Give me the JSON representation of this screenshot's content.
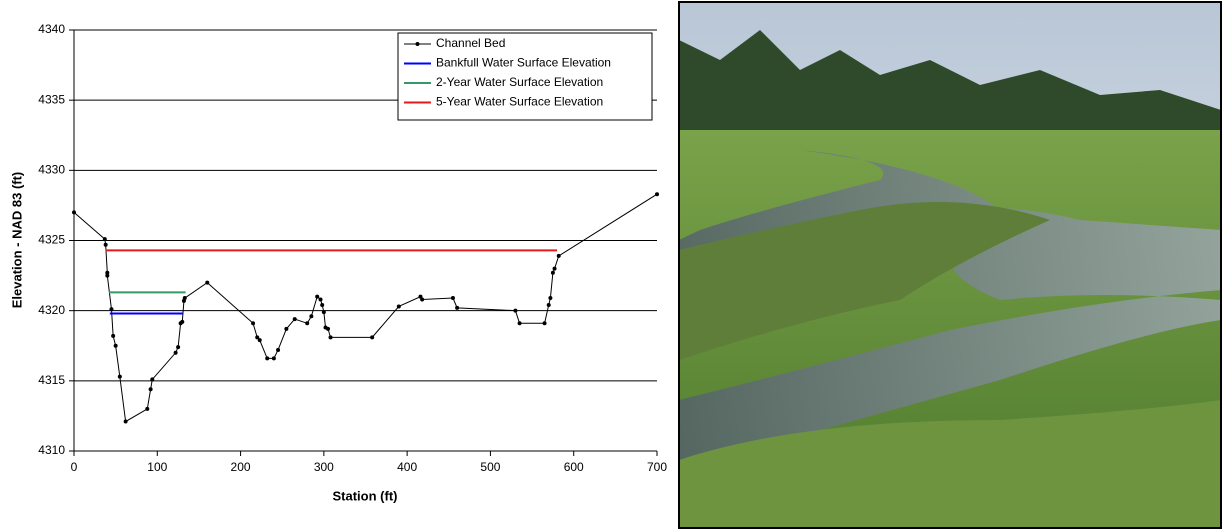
{
  "chart_data": {
    "type": "line",
    "x_label": "Station (ft)",
    "y_label": "Elevation - NAD 83 (ft)",
    "xlim": [
      0,
      700
    ],
    "xticks": [
      0,
      100,
      200,
      300,
      400,
      500,
      600,
      700
    ],
    "ylim": [
      4310,
      4340
    ],
    "yticks": [
      4310,
      4315,
      4320,
      4325,
      4330,
      4335,
      4340
    ],
    "grid": true,
    "legend": "upper right",
    "series": [
      {
        "name": "Channel Bed",
        "color": "#000000",
        "markers": true,
        "x": [
          0,
          37,
          38,
          40,
          40,
          45,
          47,
          50,
          55,
          62,
          88,
          92,
          94,
          122,
          125,
          128,
          130,
          132,
          133,
          160,
          215,
          220,
          223,
          232,
          240,
          245,
          255,
          265,
          280,
          285,
          292,
          296,
          298,
          300,
          302,
          305,
          308,
          358,
          390,
          416,
          418,
          455,
          460,
          530,
          535,
          565,
          570,
          572,
          575,
          577,
          582,
          700
        ],
        "values": [
          4327,
          4325.1,
          4324.7,
          4322.7,
          4322.5,
          4320.1,
          4318.2,
          4317.5,
          4315.3,
          4312.1,
          4313,
          4314.4,
          4315.1,
          4317,
          4317.4,
          4319.1,
          4319.2,
          4320.7,
          4320.9,
          4322,
          4319.1,
          4318.1,
          4317.9,
          4316.6,
          4316.6,
          4317.2,
          4318.7,
          4319.4,
          4319.1,
          4319.6,
          4321,
          4320.8,
          4320.4,
          4319.9,
          4318.8,
          4318.7,
          4318.1,
          4318.1,
          4320.3,
          4321,
          4320.8,
          4320.9,
          4320.2,
          4320,
          4319.1,
          4319.1,
          4320.4,
          4320.9,
          4322.7,
          4323,
          4323.9,
          4328.3
        ]
      },
      {
        "name": "Bankfull Water Surface Elevation",
        "color": "#0000ff",
        "markers": false,
        "x": [
          43,
          131
        ],
        "values": [
          4319.8,
          4319.8
        ]
      },
      {
        "name": "2-Year Water Surface Elevation",
        "color": "#339966",
        "markers": false,
        "x": [
          42,
          134
        ],
        "values": [
          4321.3,
          4321.3
        ]
      },
      {
        "name": "5-Year Water Surface Elevation",
        "color": "#e31a1c",
        "markers": false,
        "x": [
          38,
          580
        ],
        "values": [
          4324.3,
          4324.3
        ]
      }
    ]
  }
}
